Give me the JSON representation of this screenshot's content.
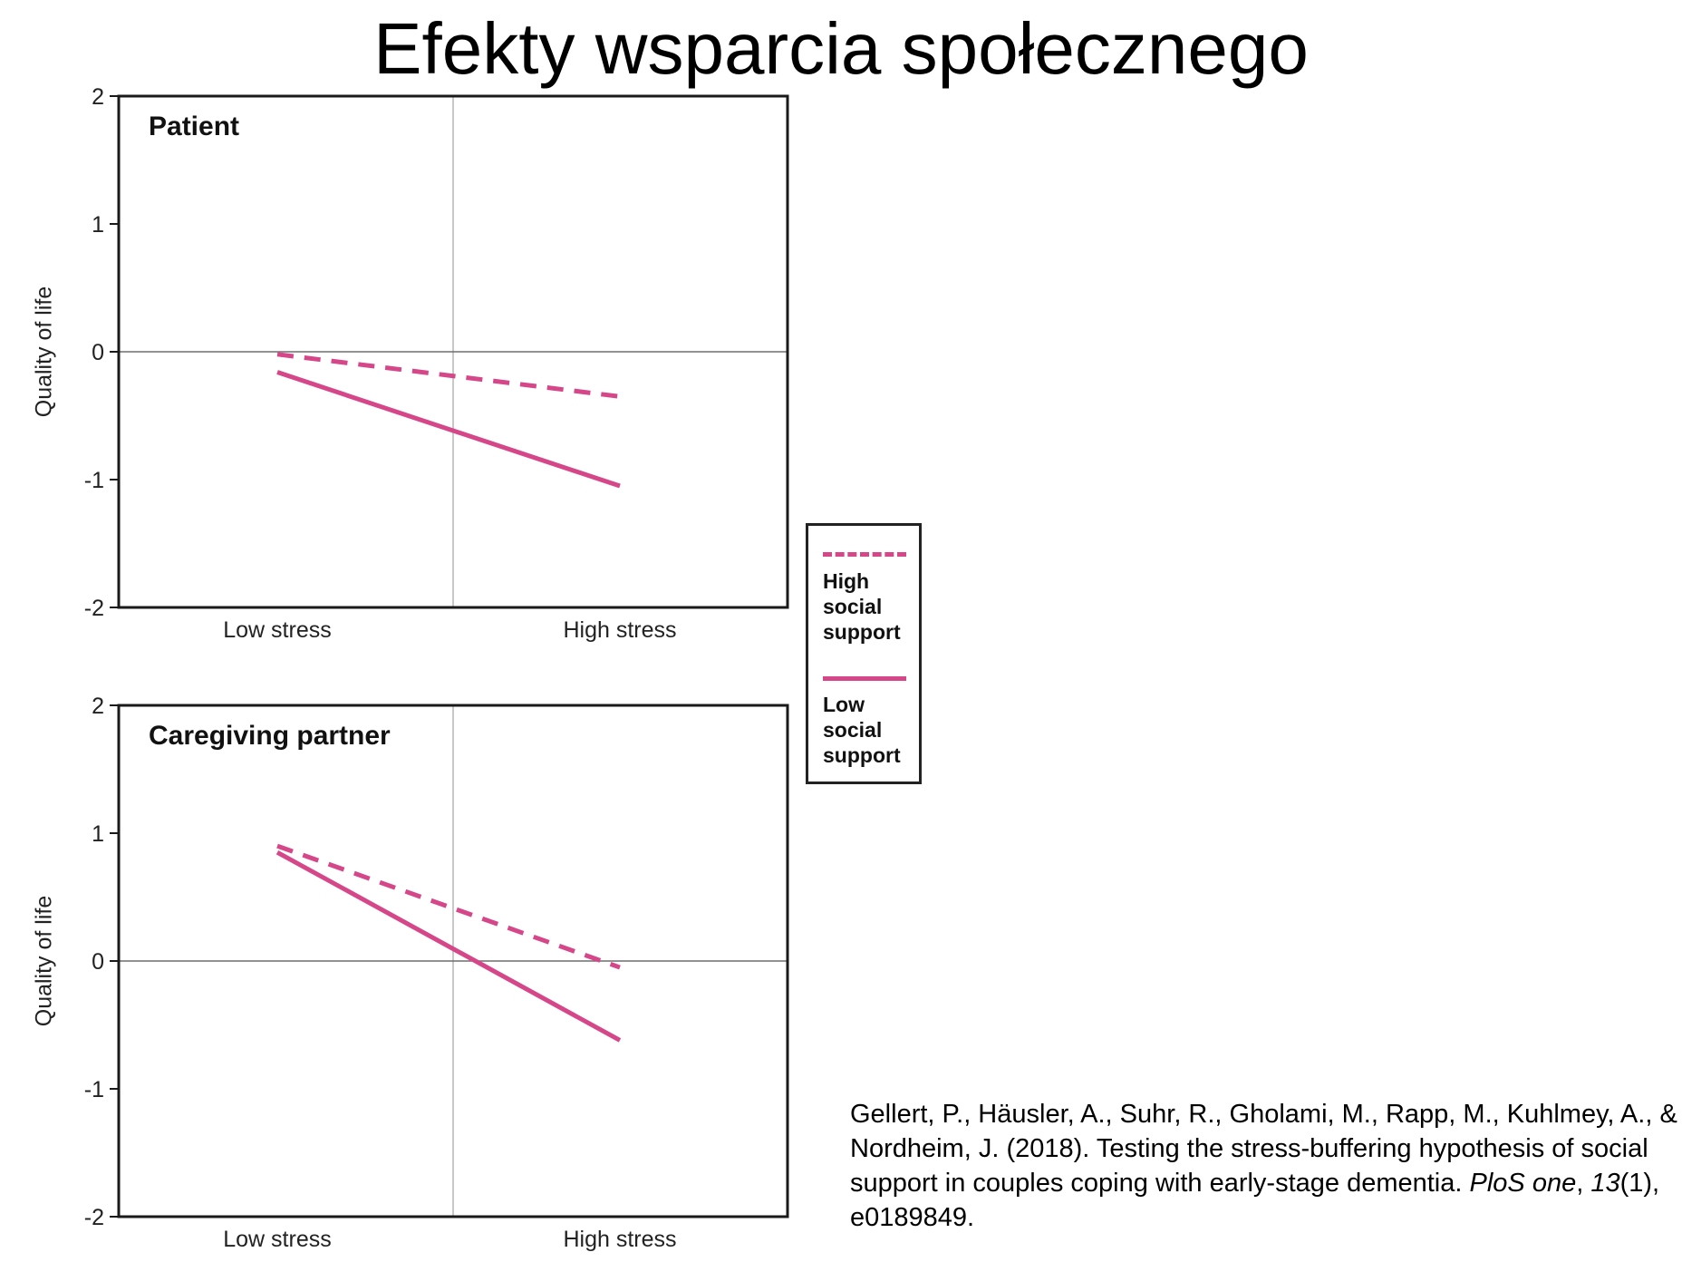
{
  "slide": {
    "title": "Efekty wsparcia społecznego"
  },
  "chart_data": [
    {
      "type": "line",
      "title": "Patient",
      "xlabel": "",
      "ylabel": "Quality of life",
      "categories": [
        "Low stress",
        "High stress"
      ],
      "ylim": [
        -2,
        2
      ],
      "yticks": [
        "2",
        "1",
        "0",
        "-1",
        "-2"
      ],
      "series": [
        {
          "name": "High social support",
          "style": "dashed",
          "color": "#d6478a",
          "values": [
            -0.02,
            -0.35
          ]
        },
        {
          "name": "Low social support",
          "style": "solid",
          "color": "#d6478a",
          "values": [
            -0.16,
            -1.05
          ]
        }
      ],
      "grid": false
    },
    {
      "type": "line",
      "title": "Caregiving partner",
      "xlabel": "",
      "ylabel": "Quality of life",
      "categories": [
        "Low stress",
        "High stress"
      ],
      "ylim": [
        -2,
        2
      ],
      "yticks": [
        "2",
        "1",
        "0",
        "-1",
        "-2"
      ],
      "series": [
        {
          "name": "High social support",
          "style": "dashed",
          "color": "#d6478a",
          "values": [
            0.9,
            -0.05
          ]
        },
        {
          "name": "Low social support",
          "style": "solid",
          "color": "#d6478a",
          "values": [
            0.85,
            -0.62
          ]
        }
      ],
      "grid": false
    }
  ],
  "legend": {
    "placement": "right",
    "items": [
      {
        "label": "High\nsocial\nsupport",
        "style": "dashed"
      },
      {
        "label": "Low\nsocial\nsupport",
        "style": "solid"
      }
    ]
  },
  "citation": {
    "authors": "Gellert, P., Häusler, A., Suhr, R., Gholami, M., Rapp, M., Kuhlmey, A., & Nordheim, J. (2018). Testing the stress-buffering hypothesis of social support in couples coping with early-stage dementia.",
    "journal": "PloS one",
    "volume": "13",
    "issue_pages": "(1), e0189849."
  }
}
